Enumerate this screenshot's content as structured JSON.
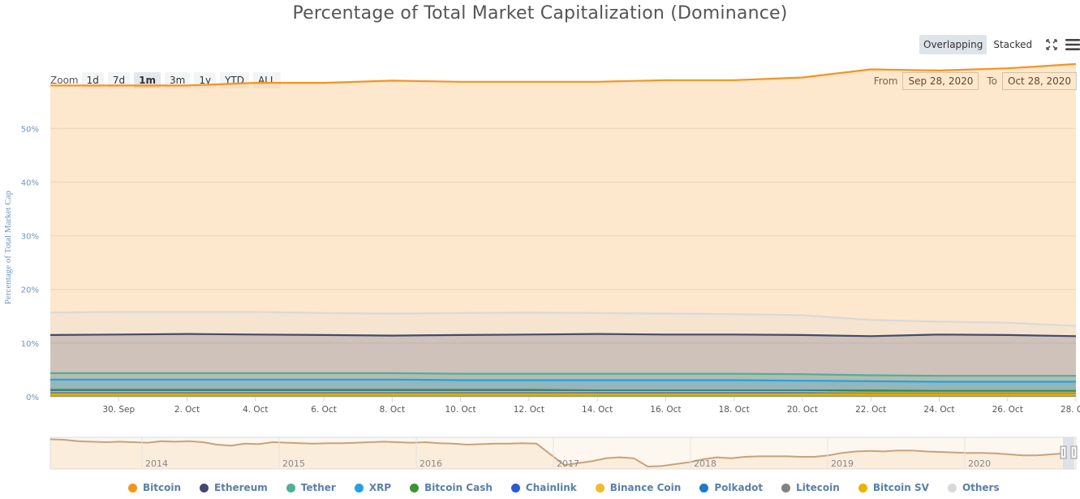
{
  "title": "Percentage of Total Market Capitalization (Dominance)",
  "view_modes": [
    {
      "label": "Overlapping",
      "active": true
    },
    {
      "label": "Stacked",
      "active": false
    }
  ],
  "icons": {
    "fullscreen": "fullscreen-icon",
    "menu": "menu-icon"
  },
  "zoom": {
    "label": "Zoom",
    "buttons": [
      {
        "label": "1d",
        "active": false
      },
      {
        "label": "7d",
        "active": false
      },
      {
        "label": "1m",
        "active": true
      },
      {
        "label": "3m",
        "active": false
      },
      {
        "label": "1y",
        "active": false
      },
      {
        "label": "YTD",
        "active": false
      },
      {
        "label": "ALL",
        "active": false
      }
    ]
  },
  "range": {
    "from_label": "From",
    "from_value": "Sep 28, 2020",
    "to_label": "To",
    "to_value": "Oct 28, 2020"
  },
  "colors": {
    "legend_text": "#5a7fa8",
    "axis_label": "#6b93c4"
  },
  "chart_data": {
    "type": "area",
    "title": "Percentage of Total Market Capitalization (Dominance)",
    "ylabel": "Percentage of Total Market Cap",
    "xlabel": "",
    "ylim": [
      0,
      57
    ],
    "y_ticks": [
      "0%",
      "10%",
      "20%",
      "30%",
      "40%",
      "50%"
    ],
    "x_ticks": [
      "30. Sep",
      "2. Oct",
      "4. Oct",
      "6. Oct",
      "8. Oct",
      "10. Oct",
      "12. Oct",
      "14. Oct",
      "16. Oct",
      "18. Oct",
      "20. Oct",
      "22. Oct",
      "24. Oct",
      "26. Oct",
      "28. Oct"
    ],
    "x": [
      "Sep 28",
      "Sep 30",
      "Oct 2",
      "Oct 4",
      "Oct 6",
      "Oct 8",
      "Oct 10",
      "Oct 12",
      "Oct 14",
      "Oct 16",
      "Oct 18",
      "Oct 20",
      "Oct 22",
      "Oct 24",
      "Oct 26",
      "Oct 28"
    ],
    "grid": true,
    "legend_position": "bottom",
    "series": [
      {
        "name": "Bitcoin",
        "color": "#f7931a",
        "values": [
          58.0,
          58.0,
          58.0,
          58.5,
          58.5,
          58.9,
          58.7,
          58.7,
          58.7,
          59.0,
          59.0,
          59.5,
          61.0,
          60.8,
          61.2,
          62.0
        ]
      },
      {
        "name": "Others",
        "color": "#d9d9d9",
        "values": [
          15.7,
          15.8,
          15.8,
          15.8,
          15.6,
          15.5,
          15.6,
          15.7,
          15.6,
          15.5,
          15.4,
          15.2,
          14.3,
          14.0,
          13.8,
          13.2
        ]
      },
      {
        "name": "Ethereum",
        "color": "#434a6e",
        "values": [
          11.5,
          11.6,
          11.7,
          11.6,
          11.5,
          11.4,
          11.5,
          11.6,
          11.7,
          11.6,
          11.6,
          11.5,
          11.3,
          11.6,
          11.5,
          11.3
        ]
      },
      {
        "name": "Tether",
        "color": "#50af95",
        "values": [
          4.4,
          4.4,
          4.4,
          4.4,
          4.4,
          4.4,
          4.3,
          4.3,
          4.3,
          4.3,
          4.3,
          4.2,
          4.0,
          3.9,
          3.9,
          3.9
        ]
      },
      {
        "name": "XRP",
        "color": "#23a2e0",
        "values": [
          3.2,
          3.2,
          3.2,
          3.2,
          3.2,
          3.2,
          3.1,
          3.1,
          3.1,
          3.1,
          3.1,
          3.0,
          2.9,
          2.8,
          2.8,
          2.8
        ]
      },
      {
        "name": "Bitcoin Cash",
        "color": "#3a9432",
        "values": [
          1.3,
          1.3,
          1.3,
          1.3,
          1.3,
          1.3,
          1.3,
          1.3,
          1.2,
          1.2,
          1.2,
          1.2,
          1.2,
          1.1,
          1.1,
          1.1
        ]
      },
      {
        "name": "Chainlink",
        "color": "#2a5ada",
        "values": [
          1.0,
          1.0,
          1.0,
          1.0,
          1.0,
          1.0,
          1.0,
          1.0,
          1.0,
          1.0,
          1.0,
          1.0,
          0.9,
          0.9,
          0.9,
          0.9
        ]
      },
      {
        "name": "Binance Coin",
        "color": "#f3ba2f",
        "values": [
          0.9,
          0.9,
          0.9,
          0.9,
          0.9,
          0.9,
          0.9,
          0.9,
          0.9,
          0.9,
          0.9,
          0.9,
          0.8,
          0.8,
          0.8,
          0.8
        ]
      },
      {
        "name": "Polkadot",
        "color": "#1b7bc4",
        "values": [
          0.7,
          0.7,
          0.7,
          0.7,
          0.7,
          0.7,
          0.7,
          0.7,
          0.7,
          0.7,
          0.7,
          0.7,
          0.6,
          0.6,
          0.6,
          0.6
        ]
      },
      {
        "name": "Litecoin",
        "color": "#838383",
        "values": [
          0.7,
          0.7,
          0.7,
          0.7,
          0.7,
          0.7,
          0.7,
          0.7,
          0.6,
          0.6,
          0.6,
          0.6,
          0.6,
          0.6,
          0.6,
          0.6
        ]
      },
      {
        "name": "Bitcoin SV",
        "color": "#eab300",
        "values": [
          0.4,
          0.4,
          0.4,
          0.4,
          0.4,
          0.4,
          0.4,
          0.4,
          0.4,
          0.4,
          0.4,
          0.4,
          0.4,
          0.4,
          0.4,
          0.4
        ]
      }
    ],
    "navigator": {
      "x_ticks": [
        "2014",
        "2015",
        "2016",
        "2017",
        "2018",
        "2019",
        "2020"
      ],
      "series_name": "Bitcoin",
      "values": [
        91,
        90,
        87,
        86,
        85,
        86,
        85,
        84,
        87,
        86,
        87,
        85,
        80,
        78,
        82,
        81,
        85,
        84,
        83,
        82,
        83,
        83,
        84,
        85,
        86,
        85,
        84,
        85,
        83,
        82,
        80,
        81,
        82,
        82,
        83,
        82,
        60,
        38,
        42,
        46,
        52,
        54,
        52,
        35,
        36,
        40,
        44,
        50,
        54,
        52,
        55,
        56,
        56,
        56,
        55,
        55,
        58,
        63,
        66,
        67,
        66,
        68,
        68,
        66,
        65,
        64,
        63,
        63,
        62,
        60,
        58,
        58,
        60,
        62
      ]
    }
  },
  "legend": [
    {
      "name": "Bitcoin",
      "color": "#f7931a"
    },
    {
      "name": "Ethereum",
      "color": "#434a6e"
    },
    {
      "name": "Tether",
      "color": "#50af95"
    },
    {
      "name": "XRP",
      "color": "#23a2e0"
    },
    {
      "name": "Bitcoin Cash",
      "color": "#3a9432"
    },
    {
      "name": "Chainlink",
      "color": "#2a5ada"
    },
    {
      "name": "Binance Coin",
      "color": "#f3ba2f"
    },
    {
      "name": "Polkadot",
      "color": "#1b7bc4"
    },
    {
      "name": "Litecoin",
      "color": "#838383"
    },
    {
      "name": "Bitcoin SV",
      "color": "#eab300"
    },
    {
      "name": "Others",
      "color": "#d9d9d9"
    }
  ]
}
